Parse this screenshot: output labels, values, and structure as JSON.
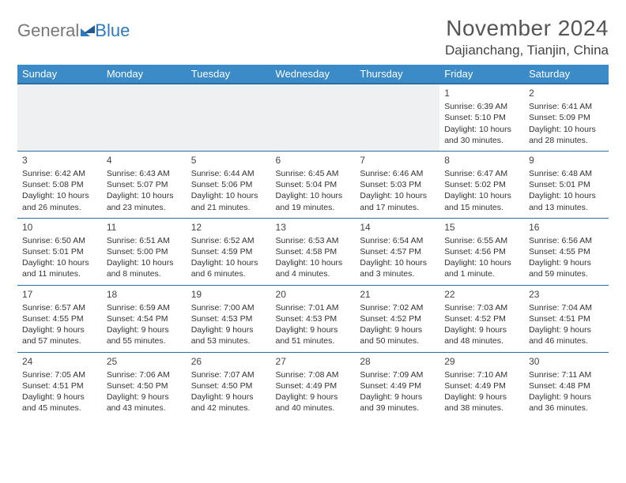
{
  "logo": {
    "text_general": "General",
    "text_blue": "Blue"
  },
  "title": {
    "month_year": "November 2024",
    "location": "Dajianchang, Tianjin, China"
  },
  "colors": {
    "header_bg": "#3b8bc9",
    "header_text": "#ffffff",
    "border": "#2d6fa3",
    "empty_bg": "#eef0f2",
    "page_bg": "#ffffff",
    "text": "#333333",
    "logo_gray": "#777777",
    "logo_blue": "#2d79c0"
  },
  "day_headers": [
    "Sunday",
    "Monday",
    "Tuesday",
    "Wednesday",
    "Thursday",
    "Friday",
    "Saturday"
  ],
  "weeks": [
    [
      null,
      null,
      null,
      null,
      null,
      {
        "date": "1",
        "sunrise": "Sunrise: 6:39 AM",
        "sunset": "Sunset: 5:10 PM",
        "daylight1": "Daylight: 10 hours",
        "daylight2": "and 30 minutes."
      },
      {
        "date": "2",
        "sunrise": "Sunrise: 6:41 AM",
        "sunset": "Sunset: 5:09 PM",
        "daylight1": "Daylight: 10 hours",
        "daylight2": "and 28 minutes."
      }
    ],
    [
      {
        "date": "3",
        "sunrise": "Sunrise: 6:42 AM",
        "sunset": "Sunset: 5:08 PM",
        "daylight1": "Daylight: 10 hours",
        "daylight2": "and 26 minutes."
      },
      {
        "date": "4",
        "sunrise": "Sunrise: 6:43 AM",
        "sunset": "Sunset: 5:07 PM",
        "daylight1": "Daylight: 10 hours",
        "daylight2": "and 23 minutes."
      },
      {
        "date": "5",
        "sunrise": "Sunrise: 6:44 AM",
        "sunset": "Sunset: 5:06 PM",
        "daylight1": "Daylight: 10 hours",
        "daylight2": "and 21 minutes."
      },
      {
        "date": "6",
        "sunrise": "Sunrise: 6:45 AM",
        "sunset": "Sunset: 5:04 PM",
        "daylight1": "Daylight: 10 hours",
        "daylight2": "and 19 minutes."
      },
      {
        "date": "7",
        "sunrise": "Sunrise: 6:46 AM",
        "sunset": "Sunset: 5:03 PM",
        "daylight1": "Daylight: 10 hours",
        "daylight2": "and 17 minutes."
      },
      {
        "date": "8",
        "sunrise": "Sunrise: 6:47 AM",
        "sunset": "Sunset: 5:02 PM",
        "daylight1": "Daylight: 10 hours",
        "daylight2": "and 15 minutes."
      },
      {
        "date": "9",
        "sunrise": "Sunrise: 6:48 AM",
        "sunset": "Sunset: 5:01 PM",
        "daylight1": "Daylight: 10 hours",
        "daylight2": "and 13 minutes."
      }
    ],
    [
      {
        "date": "10",
        "sunrise": "Sunrise: 6:50 AM",
        "sunset": "Sunset: 5:01 PM",
        "daylight1": "Daylight: 10 hours",
        "daylight2": "and 11 minutes."
      },
      {
        "date": "11",
        "sunrise": "Sunrise: 6:51 AM",
        "sunset": "Sunset: 5:00 PM",
        "daylight1": "Daylight: 10 hours",
        "daylight2": "and 8 minutes."
      },
      {
        "date": "12",
        "sunrise": "Sunrise: 6:52 AM",
        "sunset": "Sunset: 4:59 PM",
        "daylight1": "Daylight: 10 hours",
        "daylight2": "and 6 minutes."
      },
      {
        "date": "13",
        "sunrise": "Sunrise: 6:53 AM",
        "sunset": "Sunset: 4:58 PM",
        "daylight1": "Daylight: 10 hours",
        "daylight2": "and 4 minutes."
      },
      {
        "date": "14",
        "sunrise": "Sunrise: 6:54 AM",
        "sunset": "Sunset: 4:57 PM",
        "daylight1": "Daylight: 10 hours",
        "daylight2": "and 3 minutes."
      },
      {
        "date": "15",
        "sunrise": "Sunrise: 6:55 AM",
        "sunset": "Sunset: 4:56 PM",
        "daylight1": "Daylight: 10 hours",
        "daylight2": "and 1 minute."
      },
      {
        "date": "16",
        "sunrise": "Sunrise: 6:56 AM",
        "sunset": "Sunset: 4:55 PM",
        "daylight1": "Daylight: 9 hours",
        "daylight2": "and 59 minutes."
      }
    ],
    [
      {
        "date": "17",
        "sunrise": "Sunrise: 6:57 AM",
        "sunset": "Sunset: 4:55 PM",
        "daylight1": "Daylight: 9 hours",
        "daylight2": "and 57 minutes."
      },
      {
        "date": "18",
        "sunrise": "Sunrise: 6:59 AM",
        "sunset": "Sunset: 4:54 PM",
        "daylight1": "Daylight: 9 hours",
        "daylight2": "and 55 minutes."
      },
      {
        "date": "19",
        "sunrise": "Sunrise: 7:00 AM",
        "sunset": "Sunset: 4:53 PM",
        "daylight1": "Daylight: 9 hours",
        "daylight2": "and 53 minutes."
      },
      {
        "date": "20",
        "sunrise": "Sunrise: 7:01 AM",
        "sunset": "Sunset: 4:53 PM",
        "daylight1": "Daylight: 9 hours",
        "daylight2": "and 51 minutes."
      },
      {
        "date": "21",
        "sunrise": "Sunrise: 7:02 AM",
        "sunset": "Sunset: 4:52 PM",
        "daylight1": "Daylight: 9 hours",
        "daylight2": "and 50 minutes."
      },
      {
        "date": "22",
        "sunrise": "Sunrise: 7:03 AM",
        "sunset": "Sunset: 4:52 PM",
        "daylight1": "Daylight: 9 hours",
        "daylight2": "and 48 minutes."
      },
      {
        "date": "23",
        "sunrise": "Sunrise: 7:04 AM",
        "sunset": "Sunset: 4:51 PM",
        "daylight1": "Daylight: 9 hours",
        "daylight2": "and 46 minutes."
      }
    ],
    [
      {
        "date": "24",
        "sunrise": "Sunrise: 7:05 AM",
        "sunset": "Sunset: 4:51 PM",
        "daylight1": "Daylight: 9 hours",
        "daylight2": "and 45 minutes."
      },
      {
        "date": "25",
        "sunrise": "Sunrise: 7:06 AM",
        "sunset": "Sunset: 4:50 PM",
        "daylight1": "Daylight: 9 hours",
        "daylight2": "and 43 minutes."
      },
      {
        "date": "26",
        "sunrise": "Sunrise: 7:07 AM",
        "sunset": "Sunset: 4:50 PM",
        "daylight1": "Daylight: 9 hours",
        "daylight2": "and 42 minutes."
      },
      {
        "date": "27",
        "sunrise": "Sunrise: 7:08 AM",
        "sunset": "Sunset: 4:49 PM",
        "daylight1": "Daylight: 9 hours",
        "daylight2": "and 40 minutes."
      },
      {
        "date": "28",
        "sunrise": "Sunrise: 7:09 AM",
        "sunset": "Sunset: 4:49 PM",
        "daylight1": "Daylight: 9 hours",
        "daylight2": "and 39 minutes."
      },
      {
        "date": "29",
        "sunrise": "Sunrise: 7:10 AM",
        "sunset": "Sunset: 4:49 PM",
        "daylight1": "Daylight: 9 hours",
        "daylight2": "and 38 minutes."
      },
      {
        "date": "30",
        "sunrise": "Sunrise: 7:11 AM",
        "sunset": "Sunset: 4:48 PM",
        "daylight1": "Daylight: 9 hours",
        "daylight2": "and 36 minutes."
      }
    ]
  ]
}
